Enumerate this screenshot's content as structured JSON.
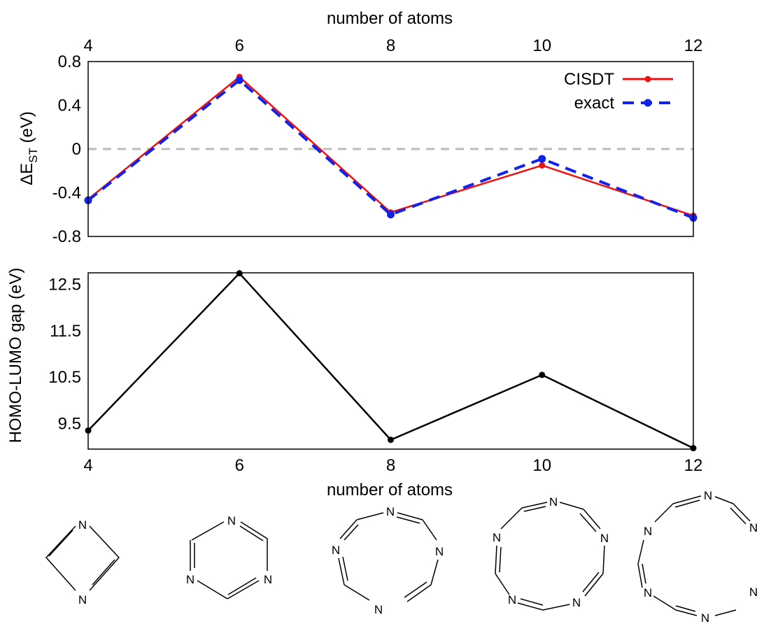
{
  "chart_data": [
    {
      "type": "line",
      "xlabel": "number of atoms",
      "ylabel_main": "ΔE",
      "ylabel_sub": "ST",
      "ylabel_unit": " (eV)",
      "x_ticks": [
        "4",
        "6",
        "8",
        "10",
        "12"
      ],
      "y_ticks": [
        "0.8",
        "0.4",
        "0",
        "-0.4",
        "-0.8"
      ],
      "xlim": [
        4,
        12
      ],
      "ylim": [
        -0.8,
        0.8
      ],
      "reference_line": 0,
      "legend_position": "top-right",
      "series": [
        {
          "name": "CISDT",
          "color": "#ee1111",
          "style": "solid",
          "x": [
            4,
            6,
            8,
            10,
            12
          ],
          "y": [
            -0.46,
            0.66,
            -0.58,
            -0.15,
            -0.61
          ]
        },
        {
          "name": "exact",
          "color": "#1122ee",
          "style": "dashed",
          "x": [
            4,
            6,
            8,
            10,
            12
          ],
          "y": [
            -0.47,
            0.63,
            -0.6,
            -0.09,
            -0.63
          ]
        }
      ]
    },
    {
      "type": "line",
      "xlabel": "number of atoms",
      "ylabel": "HOMO-LUMO gap (eV)",
      "x_ticks": [
        "4",
        "6",
        "8",
        "10",
        "12"
      ],
      "y_ticks": [
        "12.5",
        "11.5",
        "10.5",
        "9.5"
      ],
      "xlim": [
        4,
        12
      ],
      "ylim": [
        8.95,
        12.75
      ],
      "series": [
        {
          "color": "#000000",
          "style": "solid",
          "x": [
            4,
            6,
            8,
            10,
            12
          ],
          "y": [
            9.35,
            12.74,
            9.15,
            10.55,
            8.97
          ]
        }
      ]
    }
  ],
  "molecules": [
    {
      "atoms": 4,
      "labels": [
        "N",
        "N"
      ]
    },
    {
      "atoms": 6,
      "labels": [
        "N",
        "N",
        "N"
      ]
    },
    {
      "atoms": 8,
      "labels": [
        "N",
        "N",
        "N",
        "N"
      ]
    },
    {
      "atoms": 10,
      "labels": [
        "N",
        "N",
        "N",
        "N",
        "N"
      ]
    },
    {
      "atoms": 12,
      "labels": [
        "N",
        "N",
        "N",
        "N",
        "N",
        "N"
      ]
    }
  ]
}
